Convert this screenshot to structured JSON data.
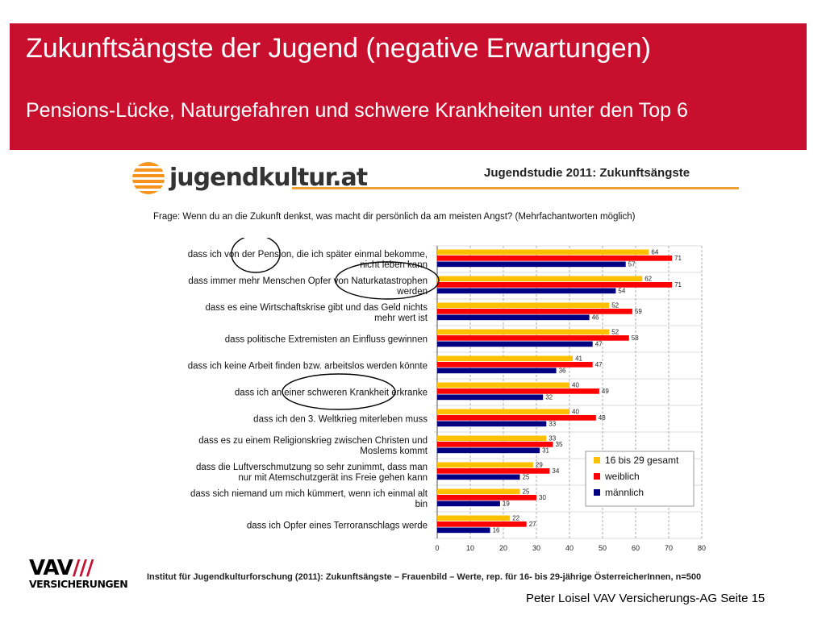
{
  "slide": {
    "title": "Zukunftsängste der Jugend (negative Erwartungen)",
    "subtitle": "Pensions-Lücke, Naturgefahren und schwere Krankheiten unter den Top 6",
    "logo_text": "jugendkultur.at",
    "study_title": "Jugendstudie 2011: Zukunftsängste",
    "question": "Frage: Wenn du an die Zukunft denkst, was macht dir persönlich da am meisten Angst? (Mehrfachantworten möglich)",
    "source": "Institut für Jugendkulturforschung (2011): Zukunftsängste – Frauenbild – Werte, rep. für 16- bis 29-jährige ÖsterreicherInnen, n=500",
    "vav_logo_top": "VAV",
    "vav_logo_bottom": "VERSICHERUNGEN",
    "footer": "Peter Loisel VAV Versicherungs-AG  Seite 15"
  },
  "colors": {
    "banner": "#c8102e",
    "gesamt": "#ffc000",
    "weiblich": "#ff0000",
    "maennlich": "#000080"
  },
  "chart_data": {
    "type": "bar",
    "orientation": "horizontal",
    "categories": [
      [
        "dass ich von der Pension, die ich später einmal bekomme,",
        "nicht leben kann"
      ],
      [
        "dass immer mehr Menschen Opfer von Naturkatastrophen",
        "werden"
      ],
      [
        "dass es eine Wirtschaftskrise gibt und das Geld nichts",
        "mehr wert ist"
      ],
      [
        "dass politische Extremisten an Einfluss gewinnen"
      ],
      [
        "dass ich keine Arbeit finden bzw. arbeitslos werden könnte"
      ],
      [
        "dass ich an einer schweren Krankheit erkranke"
      ],
      [
        "dass ich den 3. Weltkrieg miterleben muss"
      ],
      [
        "dass es zu einem Religionskrieg zwischen Christen und",
        "Moslems kommt"
      ],
      [
        "dass die Luftverschmutzung so sehr zunimmt, dass man",
        "nur mit Atemschutzgerät ins Freie gehen kann"
      ],
      [
        "dass sich niemand um mich kümmert, wenn ich einmal alt",
        "bin"
      ],
      [
        "dass ich Opfer eines Terroranschlags werde"
      ]
    ],
    "series": [
      {
        "name": "16 bis 29 gesamt",
        "color": "#ffc000",
        "values": [
          64,
          62,
          52,
          52,
          41,
          40,
          40,
          33,
          29,
          25,
          22
        ]
      },
      {
        "name": "weiblich",
        "color": "#ff0000",
        "values": [
          71,
          71,
          59,
          58,
          47,
          49,
          48,
          35,
          34,
          30,
          27
        ]
      },
      {
        "name": "männlich",
        "color": "#000080",
        "values": [
          57,
          54,
          46,
          47,
          36,
          32,
          33,
          31,
          25,
          19,
          16
        ]
      }
    ],
    "xlim": [
      0,
      80
    ],
    "xticks": [
      0,
      10,
      20,
      30,
      40,
      50,
      60,
      70,
      80
    ],
    "grid": true,
    "legend_position": "bottom-right",
    "highlighted_categories": [
      0,
      1,
      5
    ]
  }
}
